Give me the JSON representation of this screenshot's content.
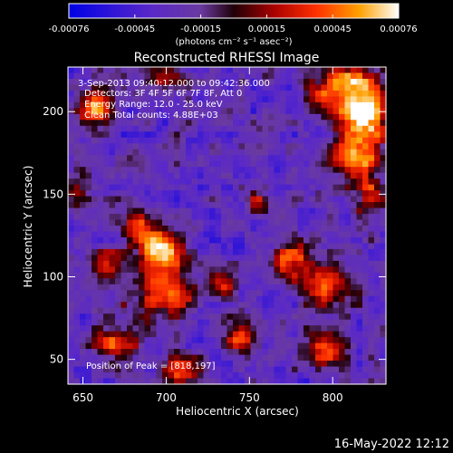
{
  "chart_data": {
    "type": "heatmap",
    "title": "Reconstructed RHESSI Image",
    "xlabel": "Heliocentric X (arcsec)",
    "ylabel": "Heliocentric Y (arcsec)",
    "xlim": [
      641,
      832
    ],
    "ylim": [
      35,
      227
    ],
    "x_ticks": [
      650,
      700,
      750,
      800
    ],
    "y_ticks": [
      50,
      100,
      150,
      200
    ],
    "colorbar": {
      "range": [
        -0.00076,
        0.00076
      ],
      "ticks": [
        "-0.00076",
        "-0.00045",
        "-0.00015",
        "0.00015",
        "0.00045",
        "0.00076"
      ],
      "unit_label": "(photons cm⁻² s⁻¹ asec⁻²)"
    },
    "annotations": {
      "time": "3-Sep-2013 09:40:12.000 to 09:42:36.000",
      "detectors": "Detectors: 3F 4F 5F 6F 7F 8F, Att 0",
      "energy": "Energy Range: 12.0 - 25.0 keV",
      "clean": "Clean     Total counts: 4.88E+03",
      "peak": "Position of Peak = [818,197]"
    },
    "sources": [
      {
        "x": 818,
        "y": 199,
        "sx": 11,
        "sy": 14,
        "a": 1.0
      },
      {
        "x": 813,
        "y": 172,
        "sx": 9,
        "sy": 9,
        "a": 0.7
      },
      {
        "x": 822,
        "y": 150,
        "sx": 7,
        "sy": 9,
        "a": 0.55
      },
      {
        "x": 795,
        "y": 212,
        "sx": 8,
        "sy": 7,
        "a": 0.45
      },
      {
        "x": 657,
        "y": 201,
        "sx": 8,
        "sy": 8,
        "a": 0.75
      },
      {
        "x": 698,
        "y": 115,
        "sx": 10,
        "sy": 8,
        "a": 0.85
      },
      {
        "x": 685,
        "y": 132,
        "sx": 8,
        "sy": 8,
        "a": 0.55
      },
      {
        "x": 700,
        "y": 90,
        "sx": 14,
        "sy": 9,
        "a": 0.7
      },
      {
        "x": 670,
        "y": 60,
        "sx": 9,
        "sy": 8,
        "a": 0.6
      },
      {
        "x": 708,
        "y": 42,
        "sx": 7,
        "sy": 6,
        "a": 0.7
      },
      {
        "x": 665,
        "y": 105,
        "sx": 7,
        "sy": 8,
        "a": 0.45
      },
      {
        "x": 745,
        "y": 63,
        "sx": 7,
        "sy": 6,
        "a": 0.55
      },
      {
        "x": 775,
        "y": 110,
        "sx": 8,
        "sy": 7,
        "a": 0.65
      },
      {
        "x": 795,
        "y": 95,
        "sx": 9,
        "sy": 9,
        "a": 0.7
      },
      {
        "x": 795,
        "y": 55,
        "sx": 9,
        "sy": 8,
        "a": 0.6
      },
      {
        "x": 755,
        "y": 145,
        "sx": 5,
        "sy": 5,
        "a": 0.5
      },
      {
        "x": 700,
        "y": 222,
        "sx": 8,
        "sy": 4,
        "a": 0.45
      },
      {
        "x": 735,
        "y": 95,
        "sx": 6,
        "sy": 6,
        "a": 0.4
      },
      {
        "x": 645,
        "y": 150,
        "sx": 6,
        "sy": 10,
        "a": 0.4
      },
      {
        "x": 810,
        "y": 220,
        "sx": 8,
        "sy": 5,
        "a": 0.6
      }
    ]
  },
  "footer": {
    "timestamp": "16-May-2022 12:12"
  }
}
